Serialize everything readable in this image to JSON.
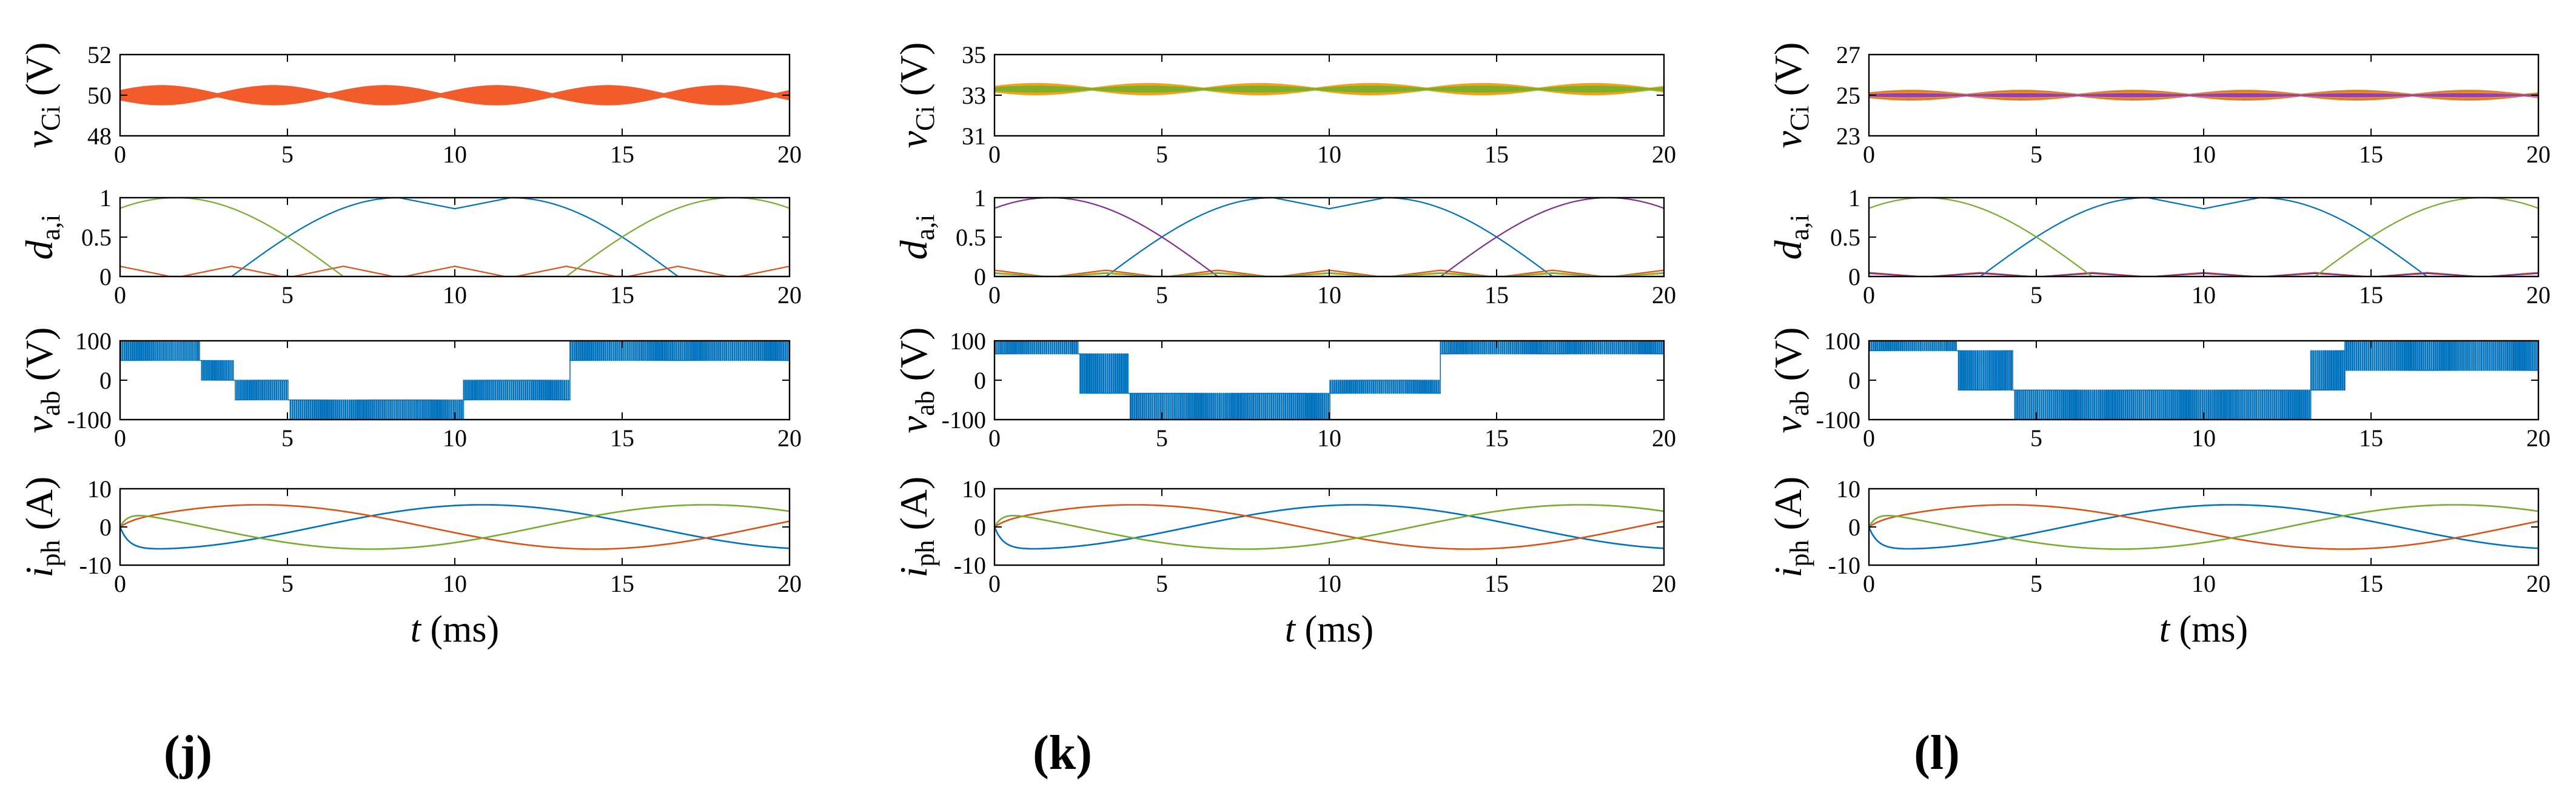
{
  "chart_data": [
    {
      "panel_label": "(j)",
      "xlabel": "t (ms)",
      "subplots": [
        {
          "type": "line",
          "ylabel": "vCi (V)",
          "ylabel_parts": {
            "main": "v",
            "sub": "Ci",
            "unit": " (V)"
          },
          "xlim": [
            0,
            20
          ],
          "ylim": [
            48,
            52
          ],
          "yticks": [
            48,
            50,
            52
          ],
          "xticks": [
            0,
            5,
            10,
            15,
            20
          ],
          "center": 50,
          "ripple_amplitude": 0.6,
          "series": [
            {
              "name": "vC1",
              "color": "#4d7fb0"
            },
            {
              "name": "vC2",
              "color": "#f25c2a"
            }
          ]
        },
        {
          "type": "line",
          "ylabel": "da,i",
          "ylabel_parts": {
            "main": "d",
            "sub": "a,i",
            "unit": ""
          },
          "xlim": [
            0,
            20
          ],
          "ylim": [
            0,
            1
          ],
          "yticks": [
            0,
            0.5,
            1
          ],
          "xticks": [
            0,
            5,
            10,
            15,
            20
          ],
          "series": [
            {
              "name": "da,1",
              "color": "#0072bd",
              "shape": "sin(wt), peak 1 at 8.3 and 11.7 ms, dip 0.86 at 10 ms"
            },
            {
              "name": "da,2",
              "color": "#d95319",
              "shape": "small spikes up to 0.13 at 0, 3.3, 6.7, 10, 13.3, 16.7, 20 ms"
            },
            {
              "name": "da,3",
              "color": "#77ac30",
              "shape": "sin(wt+2pi/3), peak 1 at 1.7 and 18.3 ms"
            }
          ]
        },
        {
          "type": "line",
          "ylabel": "vab (V)",
          "ylabel_parts": {
            "main": "v",
            "sub": "ab",
            "unit": " (V)"
          },
          "xlim": [
            0,
            20
          ],
          "ylim": [
            -100,
            100
          ],
          "yticks": [
            -100,
            0,
            100
          ],
          "xticks": [
            0,
            5,
            10,
            15,
            20
          ],
          "levels": [
            50,
            100,
            0,
            -50,
            -100
          ],
          "level_description": "PWM switching between adjacent voltage levels",
          "series": [
            {
              "name": "vab",
              "color": "#0072bd"
            }
          ]
        },
        {
          "type": "line",
          "ylabel": "iph (A)",
          "ylabel_parts": {
            "main": "i",
            "sub": "ph",
            "unit": " (A)"
          },
          "xlim": [
            0,
            20
          ],
          "ylim": [
            -10,
            10
          ],
          "yticks": [
            -10,
            0,
            10
          ],
          "xticks": [
            0,
            5,
            10,
            15,
            20
          ],
          "amplitude": 5.8,
          "series": [
            {
              "name": "ia",
              "color": "#0072bd",
              "phase_deg": -105
            },
            {
              "name": "ib",
              "color": "#d95319",
              "phase_deg": -345
            },
            {
              "name": "ic",
              "color": "#77ac30",
              "phase_deg": -225
            }
          ]
        }
      ]
    },
    {
      "panel_label": "(k)",
      "xlabel": "t (ms)",
      "subplots": [
        {
          "type": "line",
          "ylabel": "vCi (V)",
          "ylabel_parts": {
            "main": "v",
            "sub": "Ci",
            "unit": " (V)"
          },
          "xlim": [
            0,
            20
          ],
          "ylim": [
            31,
            35
          ],
          "yticks": [
            31,
            33,
            35
          ],
          "xticks": [
            0,
            5,
            10,
            15,
            20
          ],
          "center": 33.3,
          "ripple_amplitude": 0.35,
          "series": [
            {
              "name": "vC1",
              "color": "#4d7fb0"
            },
            {
              "name": "vC2",
              "color": "#f2a31a"
            },
            {
              "name": "vC3",
              "color": "#7fae2b"
            }
          ]
        },
        {
          "type": "line",
          "ylabel": "da,i",
          "ylabel_parts": {
            "main": "d",
            "sub": "a,i",
            "unit": ""
          },
          "xlim": [
            0,
            20
          ],
          "ylim": [
            0,
            1
          ],
          "yticks": [
            0,
            0.5,
            1
          ],
          "xticks": [
            0,
            5,
            10,
            15,
            20
          ],
          "series": [
            {
              "name": "da,1",
              "color": "#0072bd"
            },
            {
              "name": "da,2",
              "color": "#d95319"
            },
            {
              "name": "da,3",
              "color": "#edb120"
            },
            {
              "name": "da,4",
              "color": "#7e2f8e"
            },
            {
              "name": "da,5",
              "color": "#77ac30"
            }
          ]
        },
        {
          "type": "line",
          "ylabel": "vab (V)",
          "ylabel_parts": {
            "main": "v",
            "sub": "ab",
            "unit": " (V)"
          },
          "xlim": [
            0,
            20
          ],
          "ylim": [
            -100,
            100
          ],
          "yticks": [
            -100,
            0,
            100
          ],
          "xticks": [
            0,
            5,
            10,
            15,
            20
          ],
          "levels": [
            66.7,
            100,
            0,
            -33.3,
            -100
          ],
          "series": [
            {
              "name": "vab",
              "color": "#0072bd"
            }
          ]
        },
        {
          "type": "line",
          "ylabel": "iph (A)",
          "ylabel_parts": {
            "main": "i",
            "sub": "ph",
            "unit": " (A)"
          },
          "xlim": [
            0,
            20
          ],
          "ylim": [
            -10,
            10
          ],
          "yticks": [
            -10,
            0,
            10
          ],
          "xticks": [
            0,
            5,
            10,
            15,
            20
          ],
          "amplitude": 5.8,
          "series": [
            {
              "name": "ia",
              "color": "#0072bd",
              "phase_deg": -105
            },
            {
              "name": "ib",
              "color": "#d95319",
              "phase_deg": -345
            },
            {
              "name": "ic",
              "color": "#77ac30",
              "phase_deg": -225
            }
          ]
        }
      ]
    },
    {
      "panel_label": "(l)",
      "xlabel": "t (ms)",
      "subplots": [
        {
          "type": "line",
          "ylabel": "vCi (V)",
          "ylabel_parts": {
            "main": "v",
            "sub": "Ci",
            "unit": " (V)"
          },
          "xlim": [
            0,
            20
          ],
          "ylim": [
            23,
            27
          ],
          "yticks": [
            23,
            25,
            27
          ],
          "xticks": [
            0,
            5,
            10,
            15,
            20
          ],
          "center": 25,
          "ripple_amplitude": 0.3,
          "series": [
            {
              "name": "vC1",
              "color": "#4d7fb0"
            },
            {
              "name": "vC2",
              "color": "#e07a2a"
            },
            {
              "name": "vC3",
              "color": "#edb120"
            },
            {
              "name": "vC4",
              "color": "#9a3fb0"
            }
          ]
        },
        {
          "type": "line",
          "ylabel": "da,i",
          "ylabel_parts": {
            "main": "d",
            "sub": "a,i",
            "unit": ""
          },
          "xlim": [
            0,
            20
          ],
          "ylim": [
            0,
            1
          ],
          "yticks": [
            0,
            0.5,
            1
          ],
          "xticks": [
            0,
            5,
            10,
            15,
            20
          ],
          "series": [
            {
              "name": "da,1",
              "color": "#0072bd"
            },
            {
              "name": "da,2",
              "color": "#d95319"
            },
            {
              "name": "da,3",
              "color": "#7e2f8e"
            },
            {
              "name": "da,4",
              "color": "#77ac30"
            }
          ]
        },
        {
          "type": "line",
          "ylabel": "vab (V)",
          "ylabel_parts": {
            "main": "v",
            "sub": "ab",
            "unit": " (V)"
          },
          "xlim": [
            0,
            20
          ],
          "ylim": [
            -100,
            100
          ],
          "yticks": [
            -100,
            0,
            100
          ],
          "xticks": [
            0,
            5,
            10,
            15,
            20
          ],
          "levels": [
            75,
            100,
            -25,
            -100
          ],
          "series": [
            {
              "name": "vab",
              "color": "#0072bd"
            }
          ]
        },
        {
          "type": "line",
          "ylabel": "iph (A)",
          "ylabel_parts": {
            "main": "i",
            "sub": "ph",
            "unit": " (A)"
          },
          "xlim": [
            0,
            20
          ],
          "ylim": [
            -10,
            10
          ],
          "yticks": [
            -10,
            0,
            10
          ],
          "xticks": [
            0,
            5,
            10,
            15,
            20
          ],
          "amplitude": 5.8,
          "series": [
            {
              "name": "ia",
              "color": "#0072bd",
              "phase_deg": -105
            },
            {
              "name": "ib",
              "color": "#d95319",
              "phase_deg": -345
            },
            {
              "name": "ic",
              "color": "#77ac30",
              "phase_deg": -225
            }
          ]
        }
      ]
    }
  ]
}
